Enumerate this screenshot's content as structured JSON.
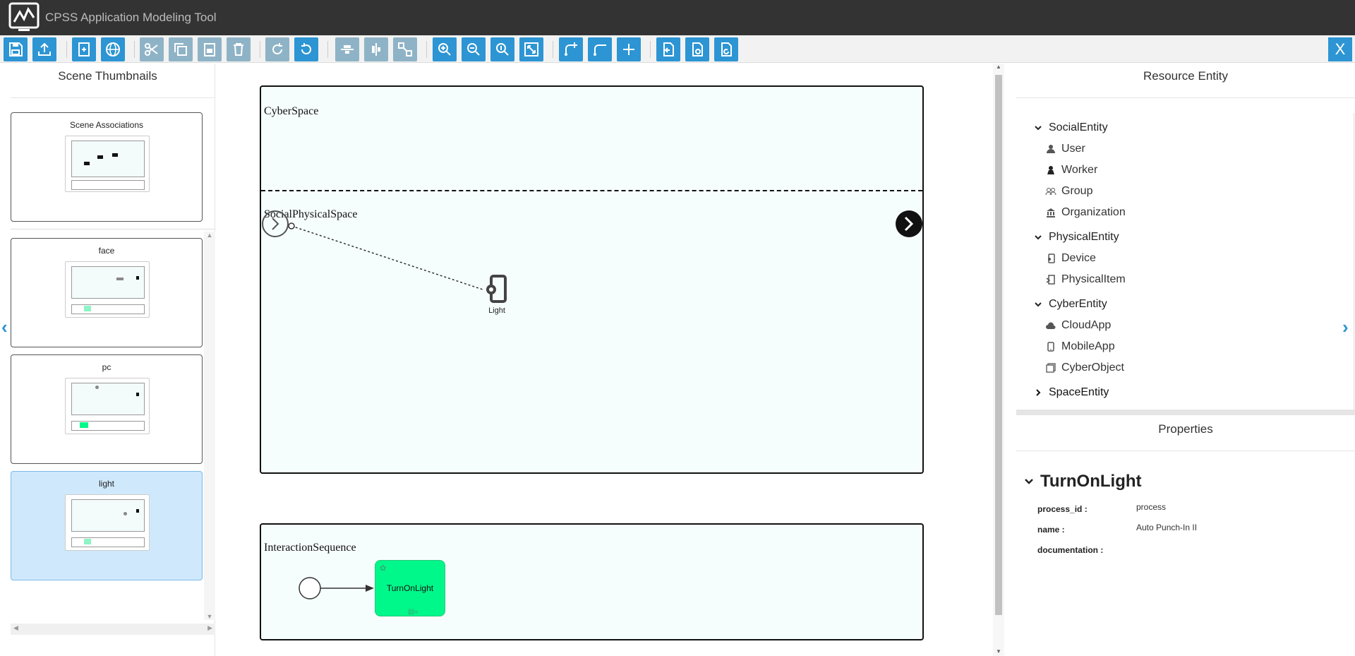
{
  "app": {
    "title": "CPSS Application Modeling Tool"
  },
  "toolbar": {
    "buttons": [
      {
        "icon": "save-icon"
      },
      {
        "icon": "upload-icon"
      },
      {
        "icon": "new-scene-icon"
      },
      {
        "icon": "globe-icon"
      },
      {
        "icon": "cut-icon"
      },
      {
        "icon": "copy-icon"
      },
      {
        "icon": "paste-icon"
      },
      {
        "icon": "delete-icon"
      },
      {
        "icon": "redo-icon"
      },
      {
        "icon": "undo-icon"
      },
      {
        "icon": "align-horizontal-icon"
      },
      {
        "icon": "align-vertical-icon"
      },
      {
        "icon": "auto-layout-icon"
      },
      {
        "icon": "zoom-in-icon"
      },
      {
        "icon": "zoom-out-icon"
      },
      {
        "icon": "zoom-actual-icon"
      },
      {
        "icon": "fit-icon"
      },
      {
        "icon": "add-connection-icon"
      },
      {
        "icon": "remove-connection-icon"
      },
      {
        "icon": "add-icon"
      },
      {
        "icon": "import-icon"
      },
      {
        "icon": "export-icon"
      },
      {
        "icon": "refresh-icon"
      }
    ],
    "close_label": "X"
  },
  "left_panel": {
    "title": "Scene Thumbnails",
    "scene_associations": "Scene Associations",
    "thumbnails": [
      {
        "label": "face"
      },
      {
        "label": "pc"
      },
      {
        "label": "light",
        "selected": true
      }
    ]
  },
  "canvas": {
    "pools": {
      "cyber_space": "CyberSpace",
      "social_physical_space": "SocialPhysicalSpace",
      "interaction_sequence": "InteractionSequence"
    },
    "device_node": {
      "label": "Light"
    },
    "task_node": {
      "label": "TurnOnLight",
      "color": "#00f88a"
    }
  },
  "right_panel": {
    "resource_title": "Resource Entity",
    "tree": {
      "social": {
        "label": "SocialEntity",
        "items": [
          "User",
          "Worker",
          "Group",
          "Organization"
        ]
      },
      "physical": {
        "label": "PhysicalEntity",
        "items": [
          "Device",
          "PhysicalItem"
        ]
      },
      "cyber": {
        "label": "CyberEntity",
        "items": [
          "CloudApp",
          "MobileApp",
          "CyberObject"
        ]
      },
      "space": {
        "label": "SpaceEntity"
      }
    },
    "properties": {
      "title": "Properties",
      "name": "TurnOnLight",
      "fields": [
        {
          "key": "process_id :",
          "value": "process"
        },
        {
          "key": "name :",
          "value": "Auto Punch-In II"
        },
        {
          "key": "documentation :",
          "value": ""
        }
      ]
    }
  },
  "colors": {
    "accent": "#2d95d3",
    "titlebar": "#333333",
    "task_green": "#00f88a",
    "selected_thumb": "#cfe8fb"
  }
}
